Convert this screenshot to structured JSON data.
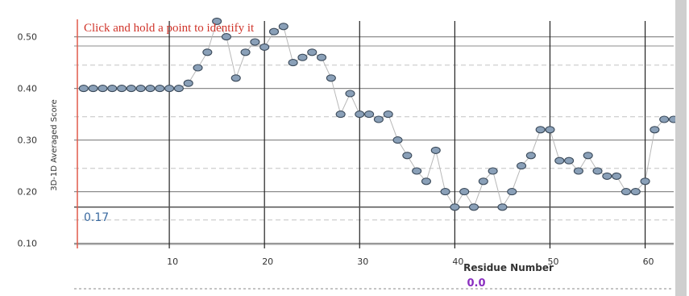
{
  "chart_data": {
    "type": "scatter",
    "instruction": "Click and hold a point to identify it",
    "xlabel": "Residue Number",
    "ylabel": "3D-1D Averaged Score",
    "xlim": [
      0,
      63
    ],
    "ylim": [
      0.09,
      0.54
    ],
    "x_ticks": [
      10,
      20,
      30,
      40,
      50,
      60
    ],
    "x_tick_labels": [
      "10",
      "20",
      "30",
      "40",
      "50",
      "60"
    ],
    "y_ticks": [
      0.1,
      0.2,
      0.3,
      0.4,
      0.5
    ],
    "y_tick_labels": [
      "0.10",
      "0.20",
      "0.30",
      "0.40",
      "0.50"
    ],
    "reference_line": {
      "value": 0.17,
      "label": "0.17"
    },
    "selected_value_label": "0.0",
    "grid": true,
    "legend": "none",
    "series": [
      {
        "x": [
          1,
          2,
          3,
          4,
          5,
          6,
          7,
          8,
          9,
          10,
          11,
          12,
          13,
          14,
          15,
          16,
          17,
          18,
          19,
          20,
          21,
          22,
          23,
          24,
          25,
          26,
          27,
          28,
          29,
          30,
          31,
          32,
          33,
          34,
          35,
          36,
          37,
          38,
          39,
          40,
          41,
          42,
          43,
          44,
          45,
          46,
          47,
          48,
          49,
          50,
          51,
          52,
          53,
          54,
          55,
          56,
          57,
          58,
          59,
          60,
          61,
          62,
          63
        ],
        "values": [
          0.4,
          0.4,
          0.4,
          0.4,
          0.4,
          0.4,
          0.4,
          0.4,
          0.4,
          0.4,
          0.4,
          0.41,
          0.44,
          0.47,
          0.53,
          0.5,
          0.42,
          0.47,
          0.49,
          0.48,
          0.51,
          0.52,
          0.45,
          0.46,
          0.47,
          0.46,
          0.42,
          0.35,
          0.39,
          0.35,
          0.35,
          0.34,
          0.35,
          0.3,
          0.27,
          0.24,
          0.22,
          0.28,
          0.2,
          0.17,
          0.2,
          0.17,
          0.22,
          0.24,
          0.17,
          0.2,
          0.25,
          0.27,
          0.32,
          0.32,
          0.26,
          0.26,
          0.24,
          0.27,
          0.24,
          0.23,
          0.23,
          0.2,
          0.2,
          0.22,
          0.32,
          0.34,
          0.34
        ]
      }
    ]
  },
  "colors": {
    "point_fill": "#8aa0b8",
    "point_stroke": "#3b4a5a",
    "connector": "#b8b8b8",
    "left_axis": "#e05a4a",
    "vgrid": "#222222",
    "hgrid": "#8c8c8c",
    "ref_line": "#555555",
    "scrollbar": "#cfcfcf"
  }
}
